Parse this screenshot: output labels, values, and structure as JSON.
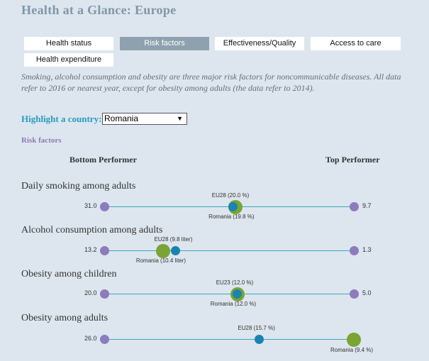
{
  "title": "Health at a Glance: Europe",
  "tabs": [
    {
      "label": "Health status",
      "active": false
    },
    {
      "label": "Risk factors",
      "active": true
    },
    {
      "label": "Effectiveness/Quality",
      "active": false
    },
    {
      "label": "Access to care",
      "active": false
    },
    {
      "label": "Health expenditure",
      "active": false
    }
  ],
  "description": "Smoking, alcohol consumption and obesity are three major risk factors for noncommunicable diseases. All data refer to 2016 or nearest year, except for obesity among adults (the data refer to 2014).",
  "highlight": {
    "label": "Highlight a country:",
    "selected": "Romania"
  },
  "section_label": "Risk factors",
  "bottom_label": "Bottom Performer",
  "top_label": "Top Performer",
  "colors": {
    "eu": "#1a83b0",
    "country": "#7aa434",
    "endpoint": "#8c7bbd",
    "line": "#36a9c0"
  },
  "indicators": [
    {
      "title": "Daily smoking among adults",
      "bottom": "31.0",
      "top": "9.7",
      "eu_label": "EU28 (20.0 %)",
      "country_label": "Romania (19.8 %)",
      "bottom_value": 31.0,
      "top_value": 9.7,
      "eu_value": 20.0,
      "country_value": 19.8
    },
    {
      "title": "Alcohol consumption among adults",
      "bottom": "13.2",
      "top": "1.3",
      "eu_label": "EU28 (9.8 liter)",
      "country_label": "Romania (10.4 liter)",
      "bottom_value": 13.2,
      "top_value": 1.3,
      "eu_value": 9.8,
      "country_value": 10.4
    },
    {
      "title": "Obesity among children",
      "bottom": "20.0",
      "top": "5.0",
      "eu_label": "EU23 (12.0 %)",
      "country_label": "Romania (12.0 %)",
      "bottom_value": 20.0,
      "top_value": 5.0,
      "eu_value": 12.0,
      "country_value": 12.0
    },
    {
      "title": "Obesity among adults",
      "bottom": "26.0",
      "top": "",
      "eu_label": "EU28 (15.7 %)",
      "country_label": "Romania (9.4 %)",
      "bottom_value": 26.0,
      "top_value": 9.4,
      "eu_value": 15.7,
      "country_value": 9.4
    }
  ]
}
